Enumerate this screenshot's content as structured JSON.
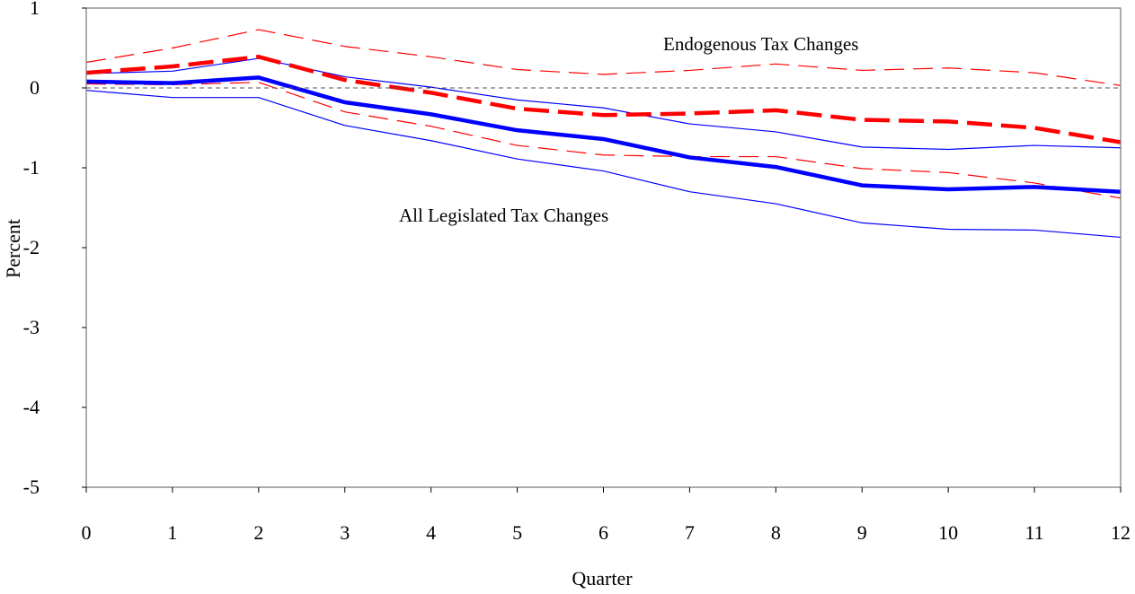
{
  "chart_data": {
    "type": "line",
    "xlabel": "Quarter",
    "ylabel": "Percent",
    "x": [
      0,
      1,
      2,
      3,
      4,
      5,
      6,
      7,
      8,
      9,
      10,
      11,
      12
    ],
    "x_ticks": [
      "0",
      "1",
      "2",
      "3",
      "4",
      "5",
      "6",
      "7",
      "8",
      "9",
      "10",
      "11",
      "12"
    ],
    "y_ticks": [
      "1",
      "0",
      "-1",
      "-2",
      "-3",
      "-4",
      "-5"
    ],
    "xlim": [
      0,
      12
    ],
    "ylim": [
      -5,
      1
    ],
    "zero_line": true,
    "grid": false,
    "legend": "none",
    "annotations": [
      {
        "text": "Endogenous Tax Changes",
        "series": "endogenous"
      },
      {
        "text": "All Legislated Tax Changes",
        "series": "all_legislated"
      }
    ],
    "series": [
      {
        "key": "endogenous",
        "style": "thick-dashed",
        "color": "#ff0000",
        "values": [
          0.19,
          0.27,
          0.39,
          0.1,
          -0.06,
          -0.26,
          -0.34,
          -0.32,
          -0.28,
          -0.4,
          -0.42,
          -0.5,
          -0.68
        ]
      },
      {
        "key": "endogenous_upper",
        "style": "thin-dashed",
        "color": "#ff0000",
        "values": [
          0.32,
          0.5,
          0.73,
          0.52,
          0.39,
          0.23,
          0.17,
          0.22,
          0.3,
          0.22,
          0.25,
          0.19,
          0.03
        ]
      },
      {
        "key": "endogenous_lower",
        "style": "thin-dashed",
        "color": "#ff0000",
        "values": [
          0.05,
          0.04,
          0.07,
          -0.3,
          -0.48,
          -0.72,
          -0.84,
          -0.86,
          -0.86,
          -1.01,
          -1.06,
          -1.19,
          -1.38
        ]
      },
      {
        "key": "all_legislated",
        "style": "thick-solid",
        "color": "#0000ff",
        "values": [
          0.08,
          0.06,
          0.13,
          -0.18,
          -0.33,
          -0.53,
          -0.64,
          -0.87,
          -0.99,
          -1.22,
          -1.27,
          -1.24,
          -1.3
        ]
      },
      {
        "key": "all_legislated_upper",
        "style": "thin-solid",
        "color": "#0000ff",
        "values": [
          0.18,
          0.21,
          0.37,
          0.14,
          0.01,
          -0.15,
          -0.25,
          -0.45,
          -0.55,
          -0.74,
          -0.77,
          -0.72,
          -0.75
        ]
      },
      {
        "key": "all_legislated_lower",
        "style": "thin-solid",
        "color": "#0000ff",
        "values": [
          -0.03,
          -0.12,
          -0.12,
          -0.47,
          -0.66,
          -0.89,
          -1.04,
          -1.3,
          -1.45,
          -1.69,
          -1.77,
          -1.78,
          -1.87
        ]
      }
    ]
  }
}
